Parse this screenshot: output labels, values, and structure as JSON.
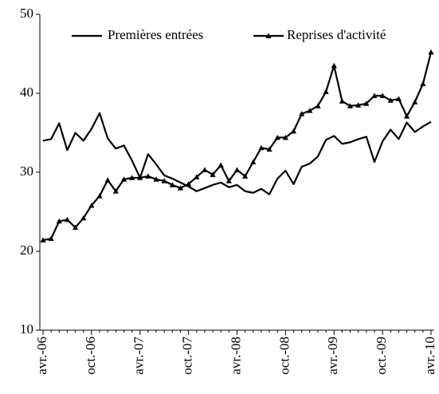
{
  "chart_data": {
    "type": "line",
    "categories": [
      "avr.-06",
      null,
      null,
      null,
      null,
      null,
      "oct.-06",
      null,
      null,
      null,
      null,
      null,
      "avr.-07",
      null,
      null,
      null,
      null,
      null,
      "oct.-07",
      null,
      null,
      null,
      null,
      null,
      "avr.-08",
      null,
      null,
      null,
      null,
      null,
      "oct.-08",
      null,
      null,
      null,
      null,
      null,
      "avr.-09",
      null,
      null,
      null,
      null,
      null,
      "oct.-09",
      null,
      null,
      null,
      null,
      null,
      "avr.-10"
    ],
    "series": [
      {
        "name": "Premières entrées",
        "color": "#000000",
        "marker": "none",
        "values": [
          34.0,
          34.2,
          36.2,
          32.8,
          35.0,
          34.0,
          35.5,
          37.5,
          34.3,
          33.0,
          33.4,
          31.5,
          29.3,
          32.3,
          31.0,
          29.6,
          29.2,
          28.7,
          28.2,
          27.6,
          28.0,
          28.4,
          28.7,
          28.1,
          28.4,
          27.6,
          27.4,
          27.9,
          27.2,
          29.2,
          30.2,
          28.5,
          30.7,
          31.1,
          32.0,
          34.1,
          34.6,
          33.6,
          33.8,
          34.2,
          34.5,
          31.3,
          33.9,
          35.4,
          34.2,
          36.3,
          35.1,
          35.8,
          36.4
        ]
      },
      {
        "name": "Reprises d'activité",
        "color": "#000000",
        "marker": "triangle",
        "values": [
          21.4,
          21.6,
          23.8,
          24.0,
          23.0,
          24.2,
          25.8,
          27.0,
          29.0,
          27.6,
          29.1,
          29.3,
          29.3,
          29.5,
          29.1,
          28.9,
          28.4,
          28.0,
          28.5,
          29.4,
          30.3,
          29.7,
          30.9,
          28.9,
          30.3,
          29.5,
          31.3,
          33.1,
          32.9,
          34.4,
          34.4,
          35.2,
          37.4,
          37.8,
          38.4,
          40.2,
          43.5,
          39.0,
          38.4,
          38.5,
          38.7,
          39.7,
          39.7,
          39.1,
          39.3,
          37.1,
          38.9,
          41.2,
          45.2
        ]
      }
    ],
    "ylim": [
      10,
      50
    ],
    "yticks": [
      10,
      20,
      30,
      40,
      50
    ],
    "grid": false,
    "legend": "top"
  }
}
